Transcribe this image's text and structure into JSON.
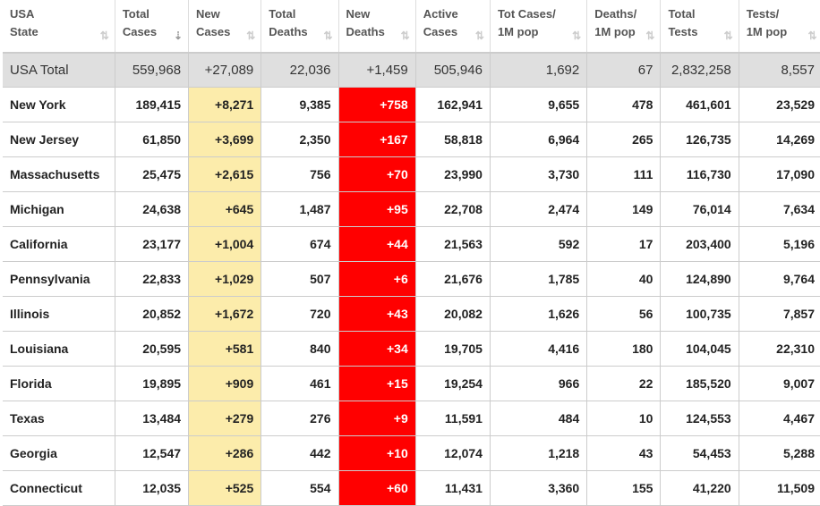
{
  "table": {
    "headers": [
      {
        "line1": "USA",
        "line2": "State",
        "sort": "⇅"
      },
      {
        "line1": "Total",
        "line2": "Cases",
        "sort": "⇣",
        "active": true
      },
      {
        "line1": "New",
        "line2": "Cases",
        "sort": "⇅"
      },
      {
        "line1": "Total",
        "line2": "Deaths",
        "sort": "⇅"
      },
      {
        "line1": "New",
        "line2": "Deaths",
        "sort": "⇅"
      },
      {
        "line1": "Active",
        "line2": "Cases",
        "sort": "⇅"
      },
      {
        "line1": "Tot Cases/",
        "line2": "1M pop",
        "sort": "⇅"
      },
      {
        "line1": "Deaths/",
        "line2": "1M pop",
        "sort": "⇅"
      },
      {
        "line1": "Total",
        "line2": "Tests",
        "sort": "⇅"
      },
      {
        "line1": "Tests/",
        "line2": "1M pop",
        "sort": "⇅"
      }
    ],
    "total_row": [
      "USA Total",
      "559,968",
      "+27,089",
      "22,036",
      "+1,459",
      "505,946",
      "1,692",
      "67",
      "2,832,258",
      "8,557"
    ],
    "rows": [
      [
        "New York",
        "189,415",
        "+8,271",
        "9,385",
        "+758",
        "162,941",
        "9,655",
        "478",
        "461,601",
        "23,529"
      ],
      [
        "New Jersey",
        "61,850",
        "+3,699",
        "2,350",
        "+167",
        "58,818",
        "6,964",
        "265",
        "126,735",
        "14,269"
      ],
      [
        "Massachusetts",
        "25,475",
        "+2,615",
        "756",
        "+70",
        "23,990",
        "3,730",
        "111",
        "116,730",
        "17,090"
      ],
      [
        "Michigan",
        "24,638",
        "+645",
        "1,487",
        "+95",
        "22,708",
        "2,474",
        "149",
        "76,014",
        "7,634"
      ],
      [
        "California",
        "23,177",
        "+1,004",
        "674",
        "+44",
        "21,563",
        "592",
        "17",
        "203,400",
        "5,196"
      ],
      [
        "Pennsylvania",
        "22,833",
        "+1,029",
        "507",
        "+6",
        "21,676",
        "1,785",
        "40",
        "124,890",
        "9,764"
      ],
      [
        "Illinois",
        "20,852",
        "+1,672",
        "720",
        "+43",
        "20,082",
        "1,626",
        "56",
        "100,735",
        "7,857"
      ],
      [
        "Louisiana",
        "20,595",
        "+581",
        "840",
        "+34",
        "19,705",
        "4,416",
        "180",
        "104,045",
        "22,310"
      ],
      [
        "Florida",
        "19,895",
        "+909",
        "461",
        "+15",
        "19,254",
        "966",
        "22",
        "185,520",
        "9,007"
      ],
      [
        "Texas",
        "13,484",
        "+279",
        "276",
        "+9",
        "11,591",
        "484",
        "10",
        "124,553",
        "4,467"
      ],
      [
        "Georgia",
        "12,547",
        "+286",
        "442",
        "+10",
        "12,074",
        "1,218",
        "43",
        "54,453",
        "5,288"
      ],
      [
        "Connecticut",
        "12,035",
        "+525",
        "554",
        "+60",
        "11,431",
        "3,360",
        "155",
        "41,220",
        "11,509"
      ]
    ]
  },
  "colors": {
    "new_cases_bg": "#fcecab",
    "new_deaths_bg": "#ff0000",
    "total_row_bg": "#dfdfdf"
  }
}
